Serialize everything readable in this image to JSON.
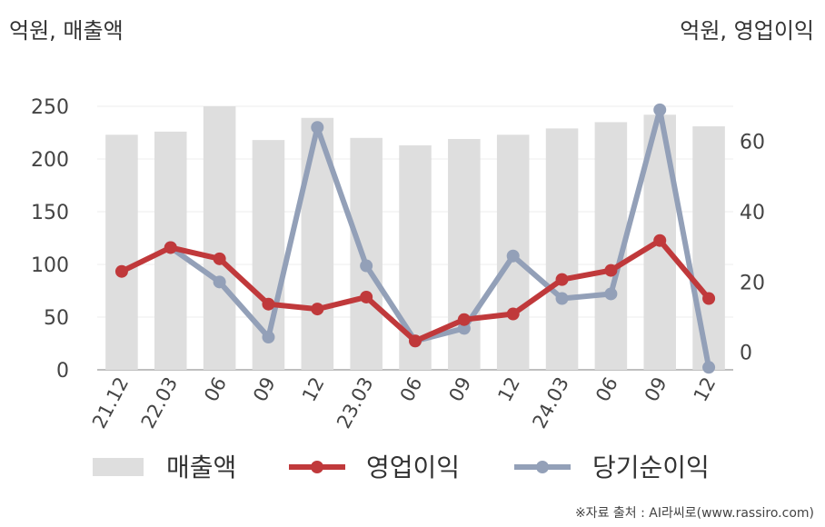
{
  "chart_data": {
    "type": "bar+line",
    "left_axis_label": "억원, 매출액",
    "right_axis_label": "억원, 영업이익",
    "categories": [
      "21.12",
      "22.03",
      "06",
      "09",
      "12",
      "23.03",
      "06",
      "09",
      "12",
      "24.03",
      "06",
      "09",
      "12"
    ],
    "left_axis": {
      "min": 0,
      "max": 250,
      "ticks": [
        0,
        50,
        100,
        150,
        200,
        250
      ]
    },
    "right_axis": {
      "min": -5,
      "max": 70,
      "ticks": [
        0,
        20,
        40,
        60
      ]
    },
    "series": [
      {
        "name": "매출액",
        "kind": "bar",
        "axis": "left",
        "color": "#dedede",
        "values": [
          223,
          226,
          250,
          218,
          239,
          220,
          213,
          219,
          223,
          229,
          235,
          242,
          231
        ]
      },
      {
        "name": "영업이익",
        "kind": "line",
        "axis": "right",
        "color": "#c0393b",
        "values": [
          23.0,
          29.8,
          26.6,
          13.7,
          12.3,
          15.7,
          3.2,
          9.3,
          10.9,
          20.7,
          23.3,
          31.8,
          15.3
        ]
      },
      {
        "name": "당기순이익",
        "kind": "line",
        "axis": "right",
        "color": "#93a0b8",
        "values": null
      }
    ]
  },
  "net_income_values": [
    null,
    29.8,
    20.0,
    4.3,
    64.0,
    24.6,
    3.2,
    6.8,
    27.4,
    15.3,
    16.6,
    69.0,
    -4.3
  ],
  "source_text": "※자료 출처 : AI라씨로(www.rassiro.com)"
}
